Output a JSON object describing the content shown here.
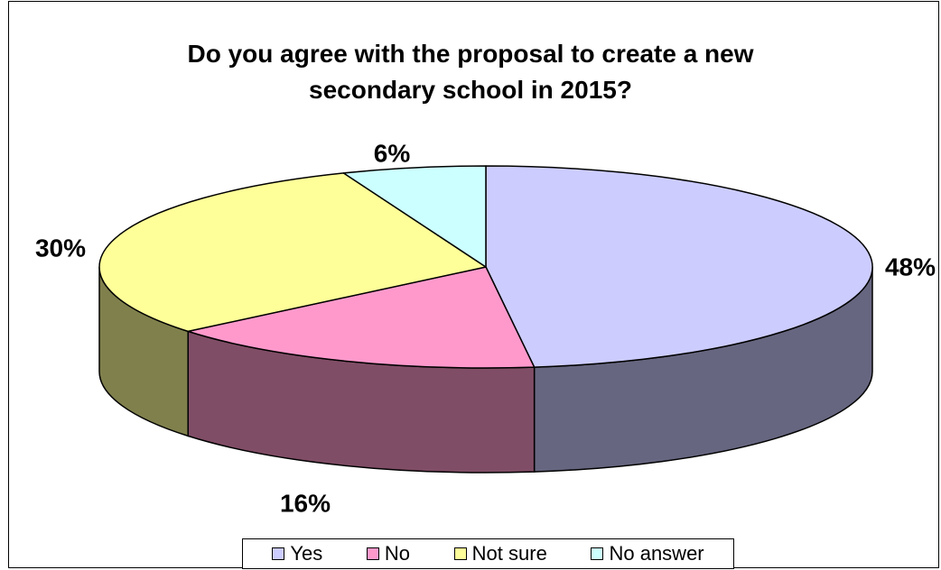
{
  "chart_data": {
    "type": "pie",
    "subtype": "3d",
    "title_lines": [
      "Do you agree with the proposal to create a new",
      "secondary school in 2015?"
    ],
    "categories": [
      "Yes",
      "No",
      "Not sure",
      "No answer"
    ],
    "values": [
      48,
      16,
      30,
      6
    ],
    "data_labels": [
      "48%",
      "16%",
      "30%",
      "6%"
    ],
    "colors": [
      "#ccccff",
      "#ff99cc",
      "#ffff99",
      "#ccffff"
    ],
    "side_colors": [
      "#666680",
      "#804d66",
      "#80804d",
      "#668080"
    ],
    "legend_position": "bottom"
  }
}
